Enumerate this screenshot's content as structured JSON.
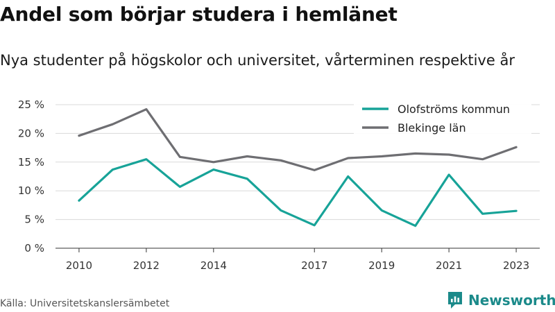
{
  "title": "Andel som börjar studera i hemlänet",
  "subtitle": "Nya studenter på högskolor och universitet, vårterminen respektive år",
  "source": "Källa: Universitetskanslersämbetet",
  "brand": {
    "name": "Newsworthy",
    "icon": "newsworthy-logo-icon",
    "color": "#1b8a8a"
  },
  "chart_data": {
    "type": "line",
    "x": [
      2010,
      2011,
      2012,
      2013,
      2014,
      2015,
      2016,
      2017,
      2018,
      2019,
      2020,
      2021,
      2022,
      2023
    ],
    "x_ticks": [
      2010,
      2012,
      2014,
      2017,
      2019,
      2021,
      2023
    ],
    "y_ticks": [
      0,
      5,
      10,
      15,
      20,
      25
    ],
    "y_tick_labels": [
      "0 %",
      "5 %",
      "10 %",
      "15 %",
      "20 %",
      "25 %"
    ],
    "ylim": [
      0,
      25
    ],
    "grid": true,
    "legend_position": "top-right",
    "series": [
      {
        "name": "Olofströms kommun",
        "color": "#17a398",
        "values": [
          8.3,
          13.7,
          15.5,
          10.7,
          13.7,
          12.1,
          6.6,
          4.0,
          12.5,
          6.6,
          3.9,
          12.8,
          6.0,
          6.5
        ]
      },
      {
        "name": "Blekinge län",
        "color": "#6e6e72",
        "values": [
          19.6,
          21.6,
          24.2,
          15.9,
          15.0,
          16.0,
          15.3,
          13.6,
          15.7,
          16.0,
          16.5,
          16.3,
          15.5,
          17.6
        ]
      }
    ]
  }
}
